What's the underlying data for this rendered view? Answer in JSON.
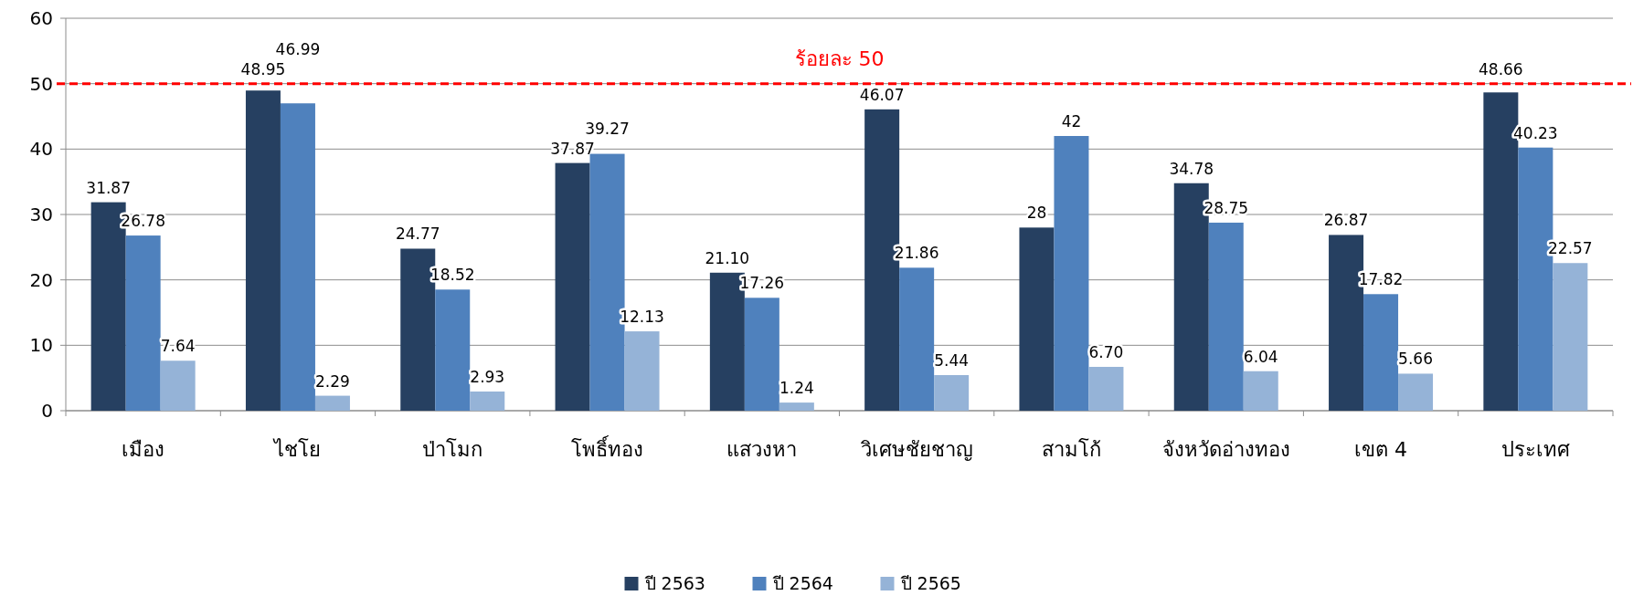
{
  "chart_data": {
    "type": "bar",
    "categories": [
      "เมือง",
      "ไชโย",
      "ป่าโมก",
      "โพธิ์ทอง",
      "แสวงหา",
      "วิเศษชัยชาญ",
      "สามโก้",
      "จังหวัดอ่างทอง",
      "เขต 4",
      "ประเทศ"
    ],
    "series": [
      {
        "name": "ปี 2563",
        "color": "#264061",
        "values": [
          31.87,
          48.95,
          24.77,
          37.87,
          21.1,
          46.07,
          28,
          34.78,
          26.87,
          48.66
        ],
        "value_labels": [
          "31.87",
          "48.95",
          "24.77",
          "37.87",
          "21.10",
          "46.07",
          "28",
          "34.78",
          "26.87",
          "48.66"
        ]
      },
      {
        "name": "ปี 2564",
        "color": "#4f81bd",
        "values": [
          26.78,
          46.99,
          18.52,
          39.27,
          17.26,
          21.86,
          42,
          28.75,
          17.82,
          40.23
        ],
        "value_labels": [
          "26.78",
          "46.99",
          "18.52",
          "39.27",
          "17.26",
          "21.86",
          "42",
          "28.75",
          "17.82",
          "40.23"
        ]
      },
      {
        "name": "ปี 2565",
        "color": "#95b3d7",
        "values": [
          7.64,
          2.29,
          2.93,
          12.13,
          1.24,
          5.44,
          6.7,
          6.04,
          5.66,
          22.57
        ],
        "value_labels": [
          "7.64",
          "2.29",
          "2.93",
          "12.13",
          "1.24",
          "5.44",
          "6.70",
          "6.04",
          "5.66",
          "22.57"
        ]
      }
    ],
    "ylim": [
      0,
      60
    ],
    "yticks": [
      0,
      10,
      20,
      30,
      40,
      50,
      60
    ],
    "grid": "y",
    "legend": "bottom",
    "ref_lines": [
      {
        "axis": "y",
        "value": 50,
        "label": "ร้อยละ 50",
        "color": "#ff0000",
        "line_style": "dashed"
      }
    ]
  }
}
